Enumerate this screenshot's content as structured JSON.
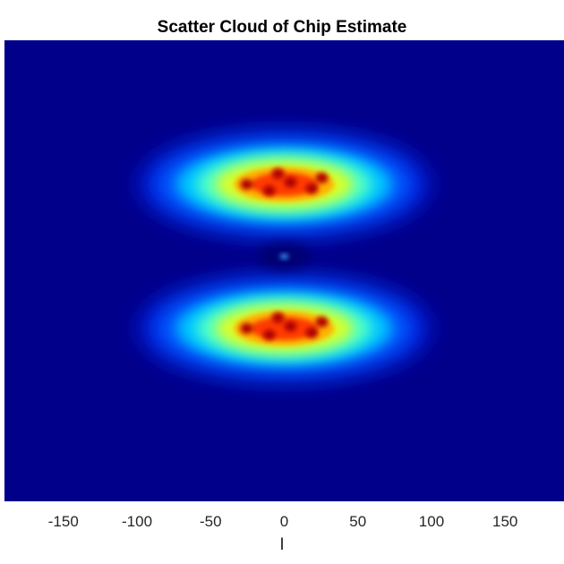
{
  "chart_data": {
    "type": "heatmap",
    "title": "Scatter Cloud of Chip Estimate",
    "xlabel": "I",
    "ylabel": "",
    "xlim": [
      -190,
      190
    ],
    "ylim": [
      -160,
      160
    ],
    "x_ticks": [
      -150,
      -100,
      -50,
      0,
      50,
      100,
      150
    ],
    "x_tick_labels": [
      "-150",
      "-100",
      "-50",
      "0",
      "50",
      "100",
      "150"
    ],
    "grid": false,
    "colormap": "jet",
    "background_color": "#00008a",
    "clusters": [
      {
        "label": "upper",
        "center": [
          0,
          60
        ],
        "spread_x": 85,
        "spread_y": 30,
        "intensity": 1.0
      },
      {
        "label": "lower",
        "center": [
          0,
          -40
        ],
        "spread_x": 85,
        "spread_y": 30,
        "intensity": 1.0
      },
      {
        "label": "center-spot",
        "center": [
          0,
          10
        ],
        "spread_x": 3,
        "spread_y": 3,
        "intensity": 0.35
      }
    ]
  }
}
